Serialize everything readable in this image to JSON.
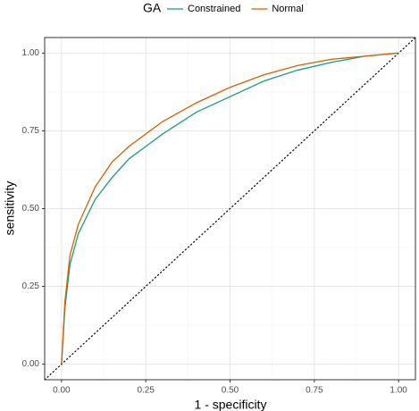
{
  "chart_data": {
    "type": "line",
    "xlabel": "1 - specificity",
    "ylabel": "sensitivity",
    "legend_title": "GA",
    "legend_position": "top",
    "x": [
      0,
      0.01,
      0.025,
      0.05,
      0.1,
      0.15,
      0.2,
      0.25,
      0.3,
      0.4,
      0.5,
      0.6,
      0.7,
      0.8,
      0.9,
      1
    ],
    "series": [
      {
        "name": "Constrained",
        "color": "#1b9e77",
        "values": [
          0,
          0.18,
          0.32,
          0.42,
          0.53,
          0.6,
          0.66,
          0.7,
          0.74,
          0.81,
          0.86,
          0.91,
          0.945,
          0.97,
          0.99,
          1
        ]
      },
      {
        "name": "Normal",
        "color": "#d95f02",
        "values": [
          0,
          0.2,
          0.35,
          0.45,
          0.57,
          0.65,
          0.7,
          0.74,
          0.78,
          0.84,
          0.89,
          0.93,
          0.96,
          0.98,
          0.99,
          1
        ]
      }
    ],
    "xlim": [
      -0.05,
      1.05
    ],
    "ylim": [
      -0.05,
      1.05
    ],
    "xticks": [
      {
        "value": 0,
        "label": "0.00"
      },
      {
        "value": 0.25,
        "label": "0.25"
      },
      {
        "value": 0.5,
        "label": "0.50"
      },
      {
        "value": 0.75,
        "label": "0.75"
      },
      {
        "value": 1,
        "label": "1.00"
      }
    ],
    "yticks": [
      {
        "value": 0,
        "label": "0.00"
      },
      {
        "value": 0.25,
        "label": "0.25"
      },
      {
        "value": 0.5,
        "label": "0.50"
      },
      {
        "value": 0.75,
        "label": "0.75"
      },
      {
        "value": 1,
        "label": "1.00"
      }
    ],
    "grid": true,
    "diagonal_reference": true
  }
}
